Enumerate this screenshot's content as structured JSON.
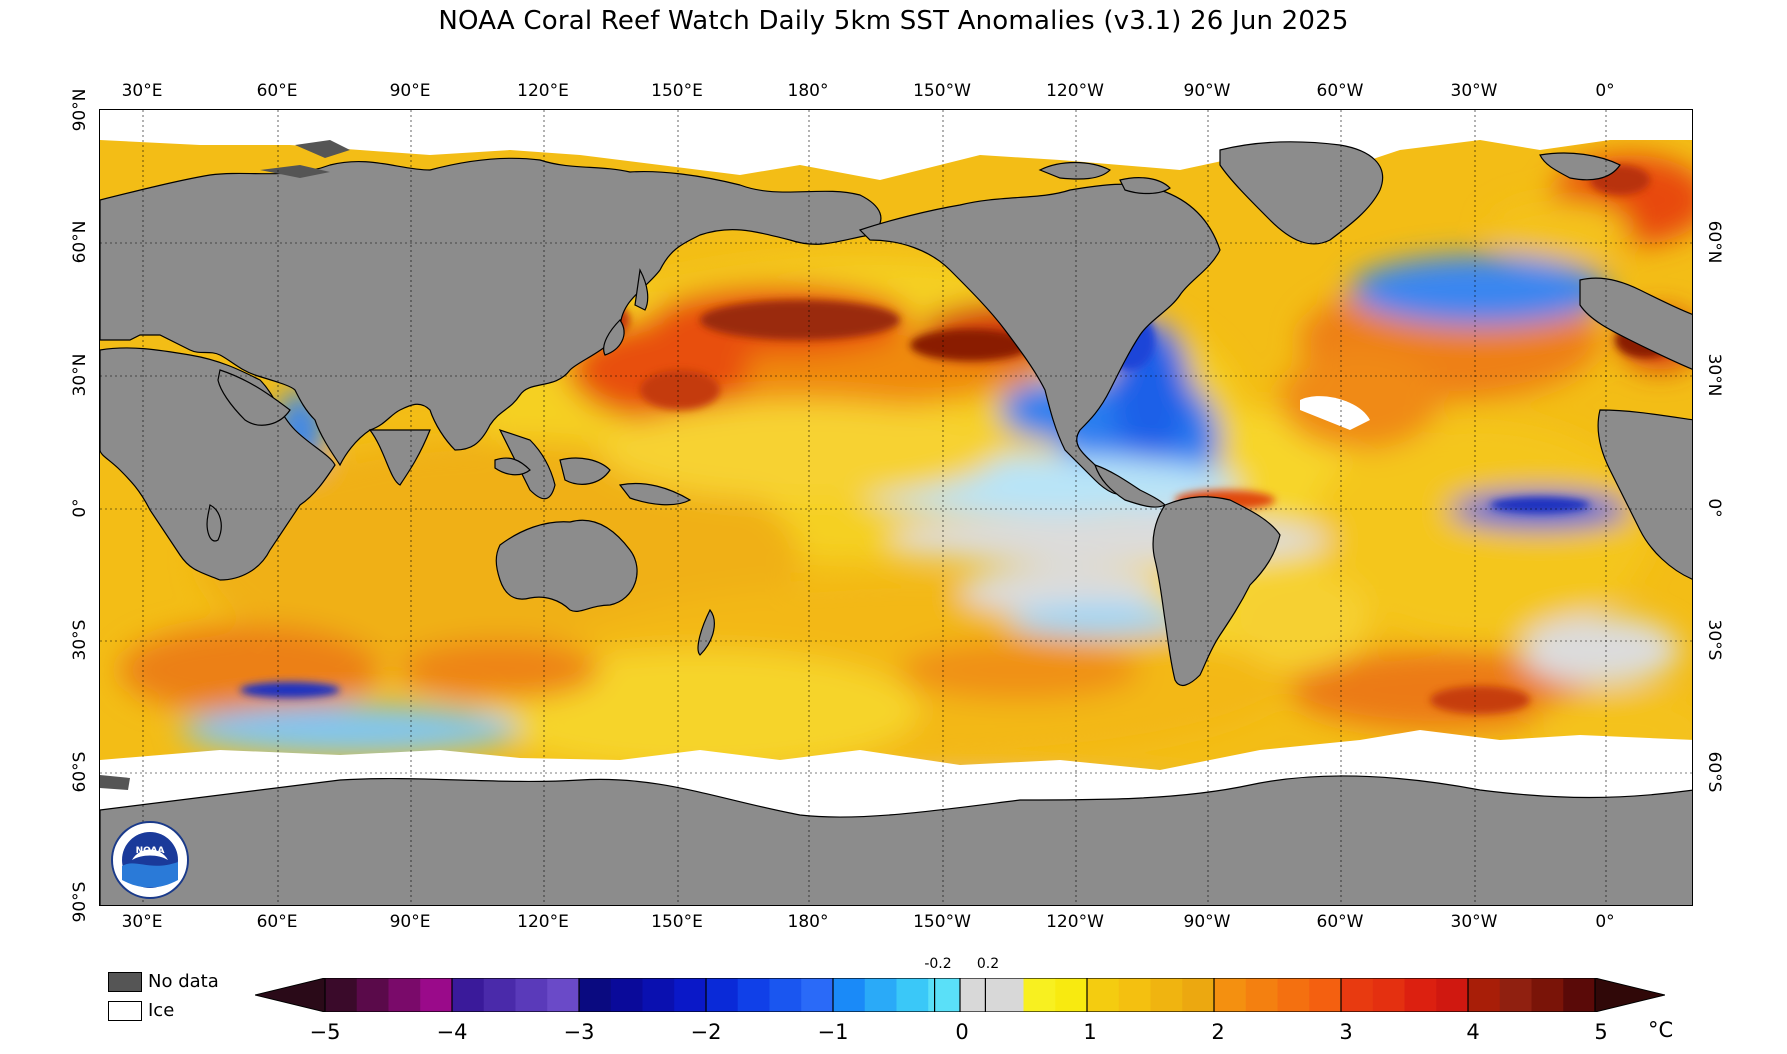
{
  "title": "NOAA Coral Reef Watch Daily 5km SST Anomalies  (v3.1)   26 Jun 2025",
  "lon_labels": [
    "30°E",
    "60°E",
    "90°E",
    "120°E",
    "150°E",
    "180°",
    "150°W",
    "120°W",
    "90°W",
    "60°W",
    "30°W",
    "0°"
  ],
  "lat_labels_left": [
    "90°N",
    "60°N",
    "30°N",
    "0°",
    "30°S",
    "60°S",
    "90°S"
  ],
  "lat_labels_right": [
    "60°N",
    "30°N",
    "0°",
    "30°S",
    "60°S"
  ],
  "legend": {
    "no_data": "No data",
    "ice": "Ice"
  },
  "colorbar": {
    "ticks": [
      "−5",
      "−4",
      "−3",
      "−2",
      "−1",
      "0",
      "1",
      "2",
      "3",
      "4",
      "5"
    ],
    "small_ticks": [
      "-0.2",
      "0.2"
    ],
    "unit": "°C"
  },
  "colors": {
    "land": "#8c8c8c",
    "no_data": "#555555",
    "ice": "#ffffff",
    "ocean_base": "#f4c21a",
    "near_zero": "#d8d8d8"
  },
  "logo": {
    "name": "NOAA",
    "icon": "noaa-seal-icon"
  }
}
